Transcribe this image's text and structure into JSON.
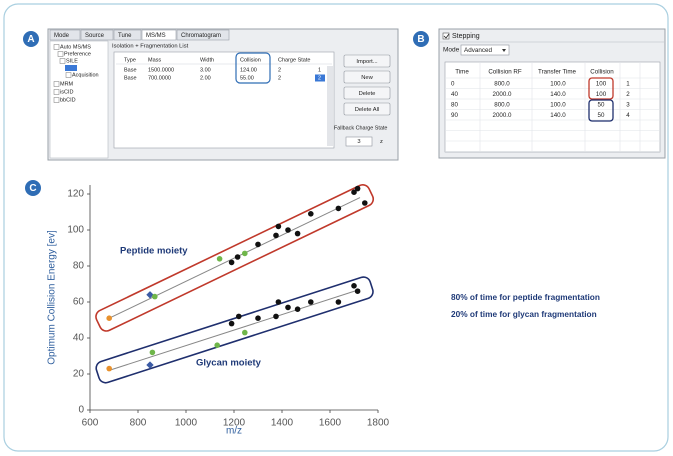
{
  "panel_a": {
    "label": "A",
    "tabs": [
      "Mode",
      "Source",
      "Tune",
      "MS/MS",
      "Chromatogram"
    ],
    "tree": [
      "Auto MS/MS",
      "Preference",
      "SILE",
      "Acquisition",
      "MRM",
      "isCID",
      "bbCID"
    ],
    "group_title": "Isolation + Fragmentation List",
    "table": {
      "headers": [
        "Type",
        "Mass",
        "Width",
        "Collision",
        "Charge State"
      ],
      "rows": [
        [
          "Base",
          "1500.0000",
          "3.00",
          "124.00",
          "2",
          "1"
        ],
        [
          "Base",
          "700.0000",
          "2.00",
          "55.00",
          "2",
          "2"
        ]
      ]
    },
    "buttons": [
      "Import...",
      "New",
      "Delete",
      "Delete All"
    ],
    "fallback_label": "Fallback Charge State",
    "fallback_value": "3",
    "fallback_unit": "z"
  },
  "panel_b": {
    "label": "B",
    "checkbox": "Stepping",
    "mode_label": "Mode",
    "mode_value": "Advanced",
    "table": {
      "headers": [
        "Time",
        "Collision RF",
        "Transfer Time",
        "Collision"
      ],
      "rows": [
        [
          "0",
          "800.0",
          "100.0",
          "100",
          "1"
        ],
        [
          "40",
          "2000.0",
          "140.0",
          "100",
          "2"
        ],
        [
          "80",
          "800.0",
          "100.0",
          "50",
          "3"
        ],
        [
          "90",
          "2000.0",
          "140.0",
          "50",
          "4"
        ]
      ]
    }
  },
  "chart_data": {
    "type": "scatter",
    "panel_label": "C",
    "x_label": "m/z",
    "y_label": "Optimum Collision Energy [ev]",
    "xlim": [
      600,
      1800
    ],
    "xticks": [
      600,
      800,
      1000,
      1200,
      1400,
      1600,
      1800
    ],
    "ylim": [
      0,
      125
    ],
    "yticks": [
      0,
      20,
      40,
      60,
      80,
      100,
      120
    ],
    "series": [
      {
        "name": "Peptide moiety",
        "outline_color": "#c0392b",
        "x": [
          680,
          850,
          870,
          1140,
          1190,
          1215,
          1245,
          1300,
          1375,
          1385,
          1425,
          1465,
          1520,
          1635,
          1700,
          1715,
          1745
        ],
        "values": [
          51,
          64,
          63,
          84,
          82,
          85,
          87,
          92,
          97,
          102,
          100,
          98,
          109,
          112,
          121,
          123,
          115
        ],
        "colors": [
          "#e8912d",
          "#3b5ba5",
          "#6fb64a",
          "#6fb64a",
          "#111111",
          "#111111",
          "#6fb64a",
          "#111111",
          "#111111",
          "#111111",
          "#111111",
          "#111111",
          "#111111",
          "#111111",
          "#111111",
          "#111111",
          "#111111"
        ],
        "fit": {
          "x": [
            680,
            1725
          ],
          "values": [
            51,
            118
          ]
        }
      },
      {
        "name": "Glycan moiety",
        "outline_color": "#1f2f6e",
        "x": [
          680,
          850,
          860,
          1130,
          1190,
          1220,
          1245,
          1300,
          1375,
          1385,
          1425,
          1465,
          1520,
          1635,
          1700,
          1715
        ],
        "values": [
          23,
          25,
          32,
          36,
          48,
          52,
          43,
          51,
          52,
          60,
          57,
          56,
          60,
          60,
          69,
          66
        ],
        "colors": [
          "#e8912d",
          "#3b5ba5",
          "#6fb64a",
          "#6fb64a",
          "#111111",
          "#111111",
          "#6fb64a",
          "#111111",
          "#111111",
          "#111111",
          "#111111",
          "#111111",
          "#111111",
          "#111111",
          "#111111",
          "#111111"
        ],
        "fit": {
          "x": [
            680,
            1725
          ],
          "values": [
            22,
            67
          ]
        }
      }
    ],
    "annotations": [
      "80% of time for peptide fragmentation",
      "20% of time for glycan fragmentation"
    ]
  }
}
